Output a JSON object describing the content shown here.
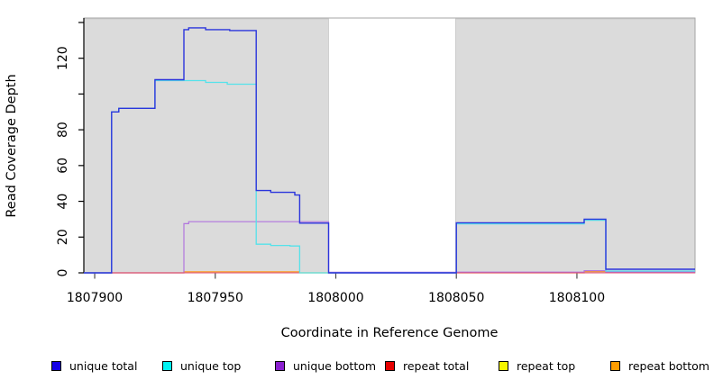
{
  "chart_data": {
    "type": "line",
    "subtype": "step-coverage-plot",
    "title": "",
    "xlabel": "Coordinate in Reference Genome",
    "ylabel": "Read Coverage Depth",
    "xlim": [
      1807895.5,
      1808149
    ],
    "ylim": [
      0,
      142.5
    ],
    "grid": false,
    "legend_position": "bottom",
    "x_ticks": [
      1807900,
      1807950,
      1808000,
      1808050,
      1808100
    ],
    "x_tick_labels": [
      "1807900",
      "1807950",
      "1808000",
      "1808050",
      "1808100"
    ],
    "y_ticks": [
      0,
      20,
      40,
      60,
      80,
      100,
      120,
      140
    ],
    "y_tick_labels": [
      "0",
      "20",
      "40",
      "60",
      "80",
      "",
      "120",
      ""
    ],
    "background_regions": [
      {
        "name": "shaded-region-1",
        "x0": 1807895.5,
        "x1": 1807997,
        "color": "#DBDBDB"
      },
      {
        "name": "shaded-region-2",
        "x0": 1808049.7,
        "x1": 1808149,
        "color": "#DBDBDB"
      }
    ],
    "series": [
      {
        "name": "repeat top",
        "color": "#F0E83C",
        "width": 1.1,
        "points": [
          [
            1807895.5,
            0
          ],
          [
            1808149,
            0
          ]
        ]
      },
      {
        "name": "repeat bottom",
        "color": "#FF9A1E",
        "width": 1.2,
        "points": [
          [
            1807895.5,
            0
          ],
          [
            1807937,
            0
          ],
          [
            1807937,
            0.6
          ],
          [
            1807985,
            0.6
          ],
          [
            1807985,
            0
          ],
          [
            1808103,
            0
          ],
          [
            1808103,
            0.7
          ],
          [
            1808112,
            0.7
          ],
          [
            1808112,
            0.4
          ],
          [
            1808149,
            0.4
          ]
        ]
      },
      {
        "name": "unique bottom",
        "color": "#B175DE",
        "width": 1.2,
        "points": [
          [
            1807895.5,
            0
          ],
          [
            1807937,
            0
          ],
          [
            1807937,
            27.5
          ],
          [
            1807939,
            27.5
          ],
          [
            1807939,
            28.6
          ],
          [
            1807997,
            28.6
          ],
          [
            1807997,
            0.3
          ],
          [
            1808050,
            0.3
          ],
          [
            1808050,
            0.4
          ],
          [
            1808103,
            0.4
          ],
          [
            1808103,
            1.2
          ],
          [
            1808112,
            1.2
          ],
          [
            1808112,
            0.5
          ],
          [
            1808149,
            0.5
          ]
        ]
      },
      {
        "name": "repeat total",
        "color": "#DC4C72",
        "width": 1.1,
        "points": [
          [
            1807895.5,
            0
          ],
          [
            1808149,
            0
          ]
        ]
      },
      {
        "name": "unique top",
        "color": "#55E2EA",
        "width": 1.3,
        "points": [
          [
            1807895.5,
            0
          ],
          [
            1807907,
            0
          ],
          [
            1807907,
            90
          ],
          [
            1807910,
            90
          ],
          [
            1807910,
            92
          ],
          [
            1807925,
            92
          ],
          [
            1807925,
            107.5
          ],
          [
            1807946,
            107.5
          ],
          [
            1807946,
            106.5
          ],
          [
            1807955,
            106.5
          ],
          [
            1807955,
            105.5
          ],
          [
            1807967,
            105.5
          ],
          [
            1807967,
            16
          ],
          [
            1807973,
            16
          ],
          [
            1807973,
            15.3
          ],
          [
            1807981,
            15.3
          ],
          [
            1807981,
            15
          ],
          [
            1807985,
            15
          ],
          [
            1807985,
            0
          ],
          [
            1808050,
            0
          ],
          [
            1808050,
            27.4
          ],
          [
            1808103,
            27.4
          ],
          [
            1808103,
            29.4
          ],
          [
            1808112,
            29.4
          ],
          [
            1808112,
            1
          ],
          [
            1808149,
            1
          ]
        ]
      },
      {
        "name": "unique total",
        "color": "#2B35DC",
        "width": 1.4,
        "points": [
          [
            1807895.5,
            0
          ],
          [
            1807907,
            0
          ],
          [
            1807907,
            90
          ],
          [
            1807910,
            90
          ],
          [
            1807910,
            92
          ],
          [
            1807925,
            92
          ],
          [
            1807925,
            108
          ],
          [
            1807937,
            108
          ],
          [
            1807937,
            136
          ],
          [
            1807939,
            136
          ],
          [
            1807939,
            137
          ],
          [
            1807946,
            137
          ],
          [
            1807946,
            136
          ],
          [
            1807956,
            136
          ],
          [
            1807956,
            135.5
          ],
          [
            1807967,
            135.5
          ],
          [
            1807967,
            46
          ],
          [
            1807973,
            46
          ],
          [
            1807973,
            45
          ],
          [
            1807983,
            45
          ],
          [
            1807983,
            43.5
          ],
          [
            1807985,
            43.5
          ],
          [
            1807985,
            27.8
          ],
          [
            1807997,
            27.8
          ],
          [
            1807997,
            0
          ],
          [
            1808050,
            0
          ],
          [
            1808050,
            28
          ],
          [
            1808103,
            28
          ],
          [
            1808103,
            30
          ],
          [
            1808112,
            30
          ],
          [
            1808112,
            2
          ],
          [
            1808149,
            2
          ]
        ]
      }
    ],
    "legend": [
      {
        "label": "unique total",
        "color": "#1400E6"
      },
      {
        "label": "unique top",
        "color": "#00F2F2"
      },
      {
        "label": "unique bottom",
        "color": "#8B20D0"
      },
      {
        "label": "repeat total",
        "color": "#E60000"
      },
      {
        "label": "repeat top",
        "color": "#F7F700"
      },
      {
        "label": "repeat bottom",
        "color": "#FF9D00"
      }
    ],
    "colors": {
      "plot_background": "#FFFFFF",
      "shaded_region": "#DBDBDB",
      "box_border": "#A6A6A6",
      "axis": "#000000"
    }
  }
}
